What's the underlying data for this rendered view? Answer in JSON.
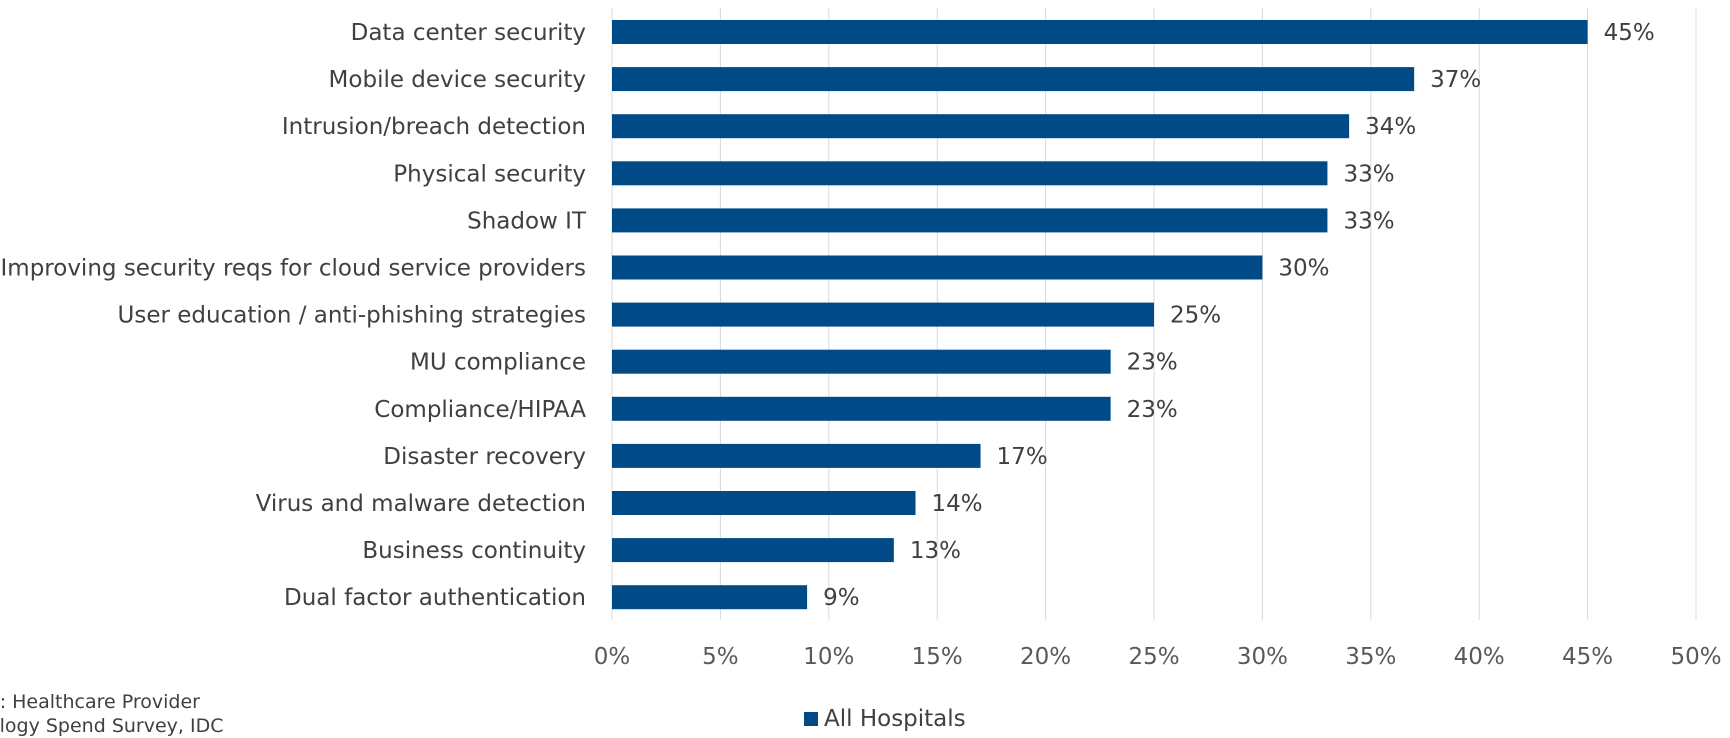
{
  "colors": {
    "bar": "#004b87",
    "grid": "#d9d9d9",
    "text": "#404040"
  },
  "source_note": "e: Healthcare Provider\nology Spend Survey, IDC",
  "legend": {
    "label": "All Hospitals",
    "position": "bottom-center"
  },
  "chart_data": {
    "type": "bar",
    "orientation": "horizontal",
    "categories": [
      "Data center security",
      "Mobile device security",
      "Intrusion/breach detection",
      "Physical security",
      "Shadow IT",
      "Improving security reqs for cloud service providers",
      "User education / anti-phishing strategies",
      "MU compliance",
      "Compliance/HIPAA",
      "Disaster recovery",
      "Virus and malware detection",
      "Business continuity",
      "Dual factor authentication"
    ],
    "series": [
      {
        "name": "All Hospitals",
        "values": [
          45,
          37,
          34,
          33,
          33,
          30,
          25,
          23,
          23,
          17,
          14,
          13,
          9
        ]
      }
    ],
    "data_labels": [
      "45%",
      "37%",
      "34%",
      "33%",
      "33%",
      "30%",
      "25%",
      "23%",
      "23%",
      "17%",
      "14%",
      "13%",
      "9%"
    ],
    "x_ticks": [
      "0%",
      "5%",
      "10%",
      "15%",
      "20%",
      "25%",
      "30%",
      "35%",
      "40%",
      "45%",
      "50%"
    ],
    "xlim": [
      0,
      50
    ],
    "grid": true,
    "title": "",
    "xlabel": "",
    "ylabel": ""
  }
}
